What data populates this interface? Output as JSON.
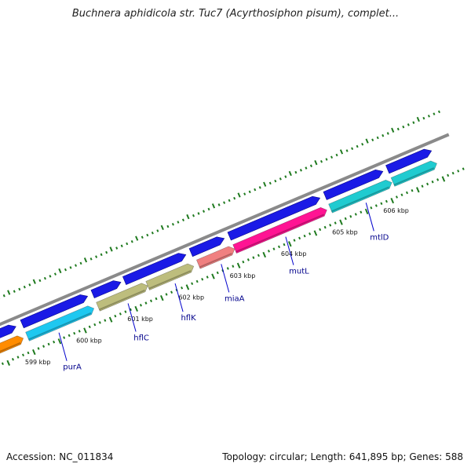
{
  "title": "Buchnera aphidicola str. Tuc7 (Acyrthosiphon pisum), complet...",
  "footer": {
    "accession": "Accession: NC_011834",
    "topology": "Topology: circular; Length: 641,895 bp; Genes: 588"
  },
  "colors": {
    "backbone": "#8a8a8a",
    "forward_strand": "#1a1ae6",
    "tick": "#1f7a1f",
    "label_line": "#0000cc",
    "gene_label": "#00008b"
  },
  "ruler": {
    "unit": "kbp",
    "labels": [
      {
        "kbp": 599,
        "text": "599 kbp"
      },
      {
        "kbp": 600,
        "text": "600 kbp"
      },
      {
        "kbp": 601,
        "text": "601 kbp"
      },
      {
        "kbp": 602,
        "text": "602 kbp"
      },
      {
        "kbp": 603,
        "text": "603 kbp"
      },
      {
        "kbp": 604,
        "text": "604 kbp"
      },
      {
        "kbp": 605,
        "text": "605 kbp"
      },
      {
        "kbp": 606,
        "text": "606 kbp"
      }
    ]
  },
  "forward_features": [
    {
      "start": 598.2,
      "end": 598.88
    },
    {
      "start": 599.0,
      "end": 600.28
    },
    {
      "start": 600.38,
      "end": 600.93
    },
    {
      "start": 601.0,
      "end": 602.2
    },
    {
      "start": 602.3,
      "end": 602.95
    },
    {
      "start": 603.05,
      "end": 604.82
    },
    {
      "start": 604.92,
      "end": 606.05
    },
    {
      "start": 606.14,
      "end": 607.0
    }
  ],
  "genes": [
    {
      "name": "",
      "start": 598.2,
      "end": 598.92,
      "color": "#ff8c00"
    },
    {
      "name": "purA",
      "start": 599.0,
      "end": 600.3,
      "color": "#1ec8f0",
      "label_at": 599.55
    },
    {
      "name": "hflC",
      "start": 600.38,
      "end": 601.35,
      "color": "#bdbd7d",
      "label_at": 600.9
    },
    {
      "name": "hflK",
      "start": 601.35,
      "end": 602.25,
      "color": "#bdbd7d",
      "label_at": 601.82
    },
    {
      "name": "miaA",
      "start": 602.34,
      "end": 603.05,
      "color": "#f08080",
      "label_at": 602.72
    },
    {
      "name": "mutL",
      "start": 603.05,
      "end": 604.85,
      "color": "#ff1493",
      "label_at": 603.98
    },
    {
      "name": "mtlD",
      "start": 604.92,
      "end": 606.12,
      "color": "#20cbd0",
      "label_at": 605.55
    },
    {
      "name": "",
      "start": 606.14,
      "end": 607.0,
      "color": "#20cbd0"
    }
  ]
}
